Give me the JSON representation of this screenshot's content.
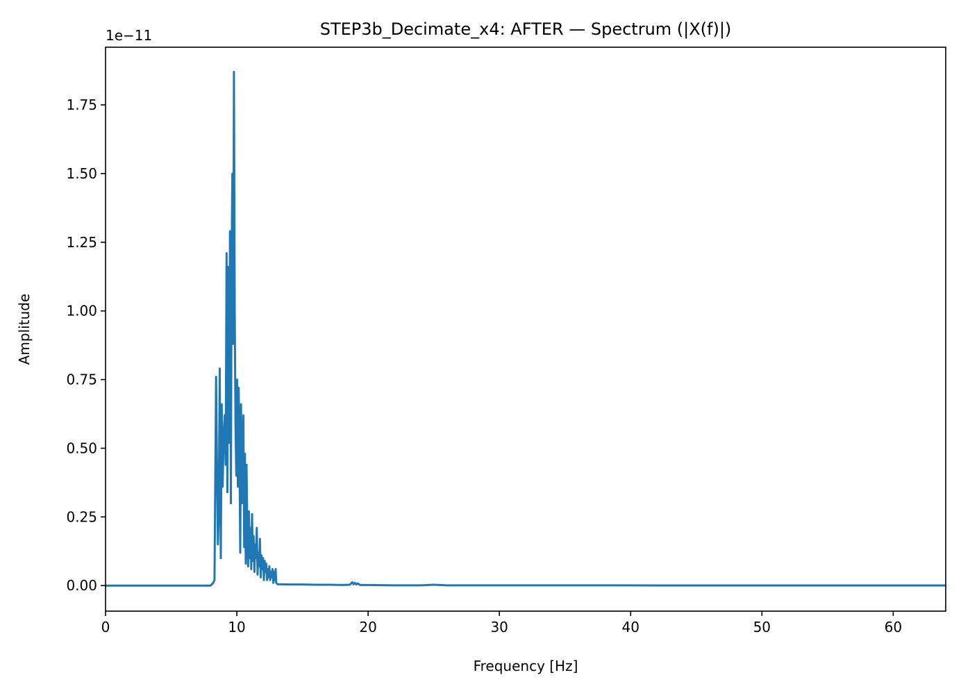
{
  "chart_data": {
    "type": "line",
    "title": "STEP3b_Decimate_x4: AFTER — Spectrum (|X(f)|)",
    "xlabel": "Frequency [Hz]",
    "ylabel": "Amplitude",
    "y_offset_label": "1e−11",
    "y_scale_exponent": -11,
    "xlim": [
      0,
      64
    ],
    "ylim": [
      -0.093,
      1.96
    ],
    "xticks": [
      0,
      10,
      20,
      30,
      40,
      50,
      60
    ],
    "xtick_labels": [
      "0",
      "10",
      "20",
      "30",
      "40",
      "50",
      "60"
    ],
    "yticks": [
      0.0,
      0.25,
      0.5,
      0.75,
      1.0,
      1.25,
      1.5,
      1.75
    ],
    "ytick_labels": [
      "0.00",
      "0.25",
      "0.50",
      "0.75",
      "1.00",
      "1.25",
      "1.50",
      "1.75"
    ],
    "grid": false,
    "series": [
      {
        "color": "#1f77b4",
        "x": [
          0,
          8.0,
          8.2,
          8.3,
          8.35,
          8.42,
          8.5,
          8.56,
          8.62,
          8.7,
          8.78,
          8.85,
          8.92,
          9.0,
          9.08,
          9.15,
          9.22,
          9.28,
          9.35,
          9.42,
          9.48,
          9.55,
          9.6,
          9.66,
          9.72,
          9.78,
          9.84,
          9.9,
          9.96,
          10.02,
          10.08,
          10.14,
          10.2,
          10.26,
          10.32,
          10.38,
          10.44,
          10.5,
          10.56,
          10.62,
          10.68,
          10.74,
          10.8,
          10.86,
          10.92,
          10.98,
          11.04,
          11.1,
          11.16,
          11.22,
          11.28,
          11.34,
          11.4,
          11.46,
          11.52,
          11.58,
          11.64,
          11.7,
          11.76,
          11.82,
          11.88,
          11.94,
          12.0,
          12.06,
          12.12,
          12.18,
          12.24,
          12.3,
          12.36,
          12.42,
          12.48,
          12.54,
          12.6,
          12.66,
          12.72,
          12.78,
          12.84,
          12.9,
          12.96,
          13.0,
          13.1,
          14.0,
          15.0,
          16.0,
          17.0,
          18.0,
          18.6,
          18.8,
          18.9,
          19.0,
          19.1,
          19.2,
          19.4,
          20.0,
          22.0,
          24.0,
          25.0,
          26.0,
          28.0,
          30.0,
          34.0,
          38.0,
          42.0,
          46.0,
          50.0,
          54.0,
          58.0,
          62.0,
          64.0
        ],
        "y": [
          0,
          0,
          0.01,
          0.02,
          0.33,
          0.76,
          0.38,
          0.15,
          0.25,
          0.79,
          0.1,
          0.66,
          0.36,
          0.55,
          0.62,
          0.44,
          1.21,
          0.34,
          1.16,
          0.52,
          1.29,
          0.3,
          1.17,
          1.5,
          0.88,
          1.87,
          1.0,
          0.58,
          0.4,
          0.75,
          0.36,
          0.72,
          0.5,
          0.12,
          0.66,
          0.3,
          0.42,
          0.62,
          0.14,
          0.48,
          0.08,
          0.44,
          0.2,
          0.07,
          0.27,
          0.1,
          0.21,
          0.06,
          0.26,
          0.09,
          0.18,
          0.05,
          0.15,
          0.1,
          0.21,
          0.04,
          0.12,
          0.07,
          0.17,
          0.03,
          0.11,
          0.06,
          0.1,
          0.02,
          0.09,
          0.05,
          0.08,
          0.02,
          0.06,
          0.03,
          0.07,
          0.02,
          0.05,
          0.03,
          0.06,
          0.01,
          0.05,
          0.02,
          0.06,
          0.01,
          0.005,
          0.004,
          0.004,
          0.003,
          0.003,
          0.002,
          0.003,
          0.012,
          0.005,
          0.01,
          0.004,
          0.008,
          0.002,
          0.002,
          0.001,
          0.001,
          0.003,
          0.001,
          0.001,
          0.001,
          0.001,
          0.001,
          0.0005,
          0.0005,
          0.0005,
          0.0005,
          0.0005,
          0.0005,
          0.0005
        ]
      }
    ]
  }
}
